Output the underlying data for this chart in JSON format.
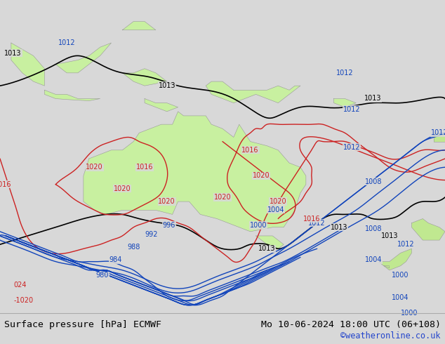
{
  "title_left": "Surface pressure [hPa] ECMWF",
  "title_right": "Mo 10-06-2024 18:00 UTC (06+108)",
  "watermark": "©weatheronline.co.uk",
  "bg_ocean": "#d8d8d8",
  "land_green": "#c8f0a0",
  "land_light": "#c0e890",
  "bottom_bar_bg": "#ffffff",
  "title_fontsize": 9.5,
  "watermark_fontsize": 8.5,
  "title_color": "#000000",
  "watermark_color": "#2244cc",
  "col_black": "#000000",
  "col_blue": "#1144bb",
  "col_red": "#cc2222",
  "lw_main": 1.2,
  "lw_blue": 1.0,
  "lw_red": 1.0,
  "label_fs": 7.0
}
